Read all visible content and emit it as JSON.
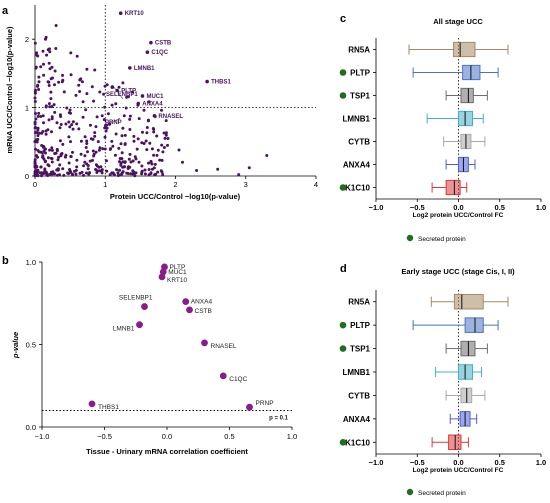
{
  "colors": {
    "dot_dark": "#4a1460",
    "dot_purple": "#8b1a8b",
    "secreted_green": "#1f6e1f",
    "box_colors": [
      "#a68a64",
      "#4a72c4",
      "#6d6d6d",
      "#43b0c6",
      "#a8a8a8",
      "#4f5fd9",
      "#d83a3a"
    ]
  },
  "chart_data": [
    {
      "panel": "a",
      "type": "scatter",
      "xlabel": "Protein UCC/Control −log10(p-value)",
      "ylabel": "mRNA UCC/Control −log10(p-value)",
      "xlim": [
        0,
        4
      ],
      "ylim": [
        0,
        2.5
      ],
      "xticks": [
        "0",
        "1",
        "2",
        "3",
        "4"
      ],
      "yticks": [
        "0",
        "1",
        "2"
      ],
      "thresholds": {
        "x": 1,
        "y": 1
      },
      "labeled_points": [
        {
          "name": "KRT10",
          "x": 1.22,
          "y": 2.38
        },
        {
          "name": "SELENBP1",
          "x": 1.1,
          "y": 1.3
        },
        {
          "name": "CSTB",
          "x": 1.65,
          "y": 1.95
        },
        {
          "name": "C1QC",
          "x": 1.6,
          "y": 1.81
        },
        {
          "name": "LMNB1",
          "x": 1.35,
          "y": 1.58
        },
        {
          "name": "THBS1",
          "x": 2.45,
          "y": 1.38
        },
        {
          "name": "PLTP",
          "x": 1.17,
          "y": 1.25
        },
        {
          "name": "MUC1",
          "x": 1.53,
          "y": 1.17
        },
        {
          "name": "ANXA4",
          "x": 1.47,
          "y": 1.06
        },
        {
          "name": "RNASEL",
          "x": 1.7,
          "y": 0.88
        },
        {
          "name": "PRNP",
          "x": 1.06,
          "y": 0.76
        }
      ]
    },
    {
      "panel": "b",
      "type": "scatter",
      "xlabel": "Tissue - Urinary mRNA correlation coefficient",
      "ylabel": "p-value",
      "xlim": [
        -1.0,
        1.0
      ],
      "ylim": [
        0,
        1.0
      ],
      "xticks": [
        "−1.0",
        "−0.5",
        "0.0",
        "0.5",
        "1.0"
      ],
      "yticks": [
        "0.0",
        "0.5",
        "1.0"
      ],
      "threshold_label": "p = 0.1",
      "points": [
        {
          "name": "PLTP",
          "x": -0.02,
          "y": 0.97
        },
        {
          "name": "MUC1",
          "x": -0.03,
          "y": 0.94
        },
        {
          "name": "KRT10",
          "x": -0.04,
          "y": 0.91
        },
        {
          "name": "SELENBP1",
          "x": -0.18,
          "y": 0.73
        },
        {
          "name": "ANXA4",
          "x": 0.15,
          "y": 0.76
        },
        {
          "name": "CSTB",
          "x": 0.18,
          "y": 0.71
        },
        {
          "name": "LMNB1",
          "x": -0.22,
          "y": 0.62
        },
        {
          "name": "RNASEL",
          "x": 0.3,
          "y": 0.51
        },
        {
          "name": "C1QC",
          "x": 0.45,
          "y": 0.31
        },
        {
          "name": "THBS1",
          "x": -0.6,
          "y": 0.14
        },
        {
          "name": "PRNP",
          "x": 0.66,
          "y": 0.12
        }
      ]
    },
    {
      "panel": "c",
      "type": "box",
      "title": "All stage UCC",
      "xlabel": "Log2 protein UCC/Control FC",
      "xlim": [
        -1.0,
        1.0
      ],
      "xticks": [
        "−1.0",
        "−0.5",
        "0.0",
        "0.5",
        "1.0"
      ],
      "legend": "Secreted protein",
      "boxes": [
        {
          "name": "RN5A",
          "secreted": false,
          "min": -0.6,
          "q1": -0.06,
          "median": 0.02,
          "q3": 0.2,
          "max": 0.6
        },
        {
          "name": "PLTP",
          "secreted": true,
          "min": -0.55,
          "q1": 0.05,
          "median": 0.15,
          "q3": 0.26,
          "max": 0.48
        },
        {
          "name": "TSP1",
          "secreted": true,
          "min": -0.15,
          "q1": 0.03,
          "median": 0.12,
          "q3": 0.18,
          "max": 0.35
        },
        {
          "name": "LMNB1",
          "secreted": false,
          "min": -0.38,
          "q1": 0.0,
          "median": 0.08,
          "q3": 0.17,
          "max": 0.3
        },
        {
          "name": "CYTB",
          "secreted": false,
          "min": -0.18,
          "q1": 0.03,
          "median": 0.09,
          "q3": 0.15,
          "max": 0.32
        },
        {
          "name": "ANXA4",
          "secreted": false,
          "min": -0.15,
          "q1": 0.0,
          "median": 0.06,
          "q3": 0.12,
          "max": 0.2
        },
        {
          "name": "K1C10",
          "secreted": true,
          "min": -0.32,
          "q1": -0.15,
          "median": -0.05,
          "q3": 0.02,
          "max": 0.1
        }
      ]
    },
    {
      "panel": "d",
      "type": "box",
      "title": "Early stage UCC (stage Cis, I, II)",
      "xlabel": "Log2 protein UCC/Control FC",
      "xlim": [
        -1.0,
        1.0
      ],
      "xticks": [
        "−1.0",
        "−0.5",
        "0.0",
        "0.5",
        "1.0"
      ],
      "legend": "Secreted protein",
      "boxes": [
        {
          "name": "RN5A",
          "secreted": false,
          "min": -0.33,
          "q1": -0.05,
          "median": 0.04,
          "q3": 0.3,
          "max": 0.6
        },
        {
          "name": "PLTP",
          "secreted": true,
          "min": -0.55,
          "q1": 0.08,
          "median": 0.2,
          "q3": 0.3,
          "max": 0.48
        },
        {
          "name": "TSP1",
          "secreted": true,
          "min": -0.15,
          "q1": 0.03,
          "median": 0.12,
          "q3": 0.2,
          "max": 0.35
        },
        {
          "name": "LMNB1",
          "secreted": false,
          "min": -0.28,
          "q1": 0.0,
          "median": 0.08,
          "q3": 0.17,
          "max": 0.28
        },
        {
          "name": "CYTB",
          "secreted": false,
          "min": -0.15,
          "q1": 0.03,
          "median": 0.1,
          "q3": 0.16,
          "max": 0.32
        },
        {
          "name": "ANXA4",
          "secreted": false,
          "min": -0.1,
          "q1": 0.02,
          "median": 0.08,
          "q3": 0.14,
          "max": 0.22
        },
        {
          "name": "K1C10",
          "secreted": true,
          "min": -0.32,
          "q1": -0.12,
          "median": -0.04,
          "q3": 0.03,
          "max": 0.12
        }
      ]
    }
  ],
  "panel_labels": {
    "a": "a",
    "b": "b",
    "c": "c",
    "d": "d"
  }
}
